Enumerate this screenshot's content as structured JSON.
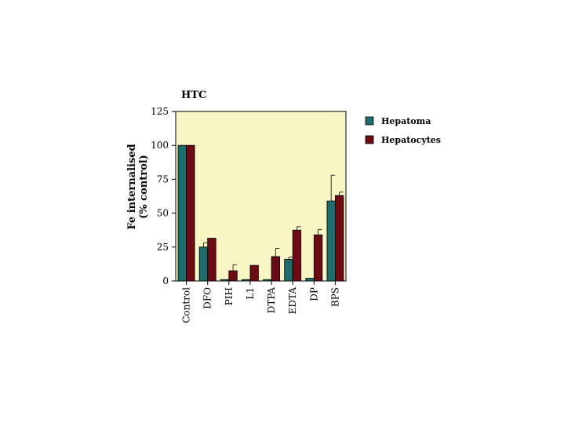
{
  "chart_data": {
    "type": "bar",
    "title": "HTC",
    "ylabel_lines": [
      "Fe internalised",
      "(% control)"
    ],
    "xlabel": "",
    "ylim": [
      0,
      125
    ],
    "yticks": [
      0,
      25,
      50,
      75,
      100,
      125
    ],
    "categories": [
      "Control",
      "DFO",
      "PIH",
      "L1",
      "DTPA",
      "EDTA",
      "DP",
      "BPS"
    ],
    "series": [
      {
        "name": "Hepatoma",
        "color": "#1a6e6e",
        "values": [
          100,
          25,
          1,
          1,
          1,
          16,
          2,
          59
        ],
        "errors": [
          0,
          3,
          0,
          0,
          0,
          1.5,
          0,
          19
        ]
      },
      {
        "name": "Hepatocytes",
        "color": "#6e0a14",
        "values": [
          100,
          31.5,
          7.5,
          11.5,
          18,
          37.5,
          34,
          63
        ],
        "errors": [
          0,
          0,
          4.5,
          0,
          6,
          2.5,
          4,
          2.5
        ]
      }
    ],
    "plot_background": "#f8f7c4",
    "grid": false,
    "legend_position": "right"
  }
}
